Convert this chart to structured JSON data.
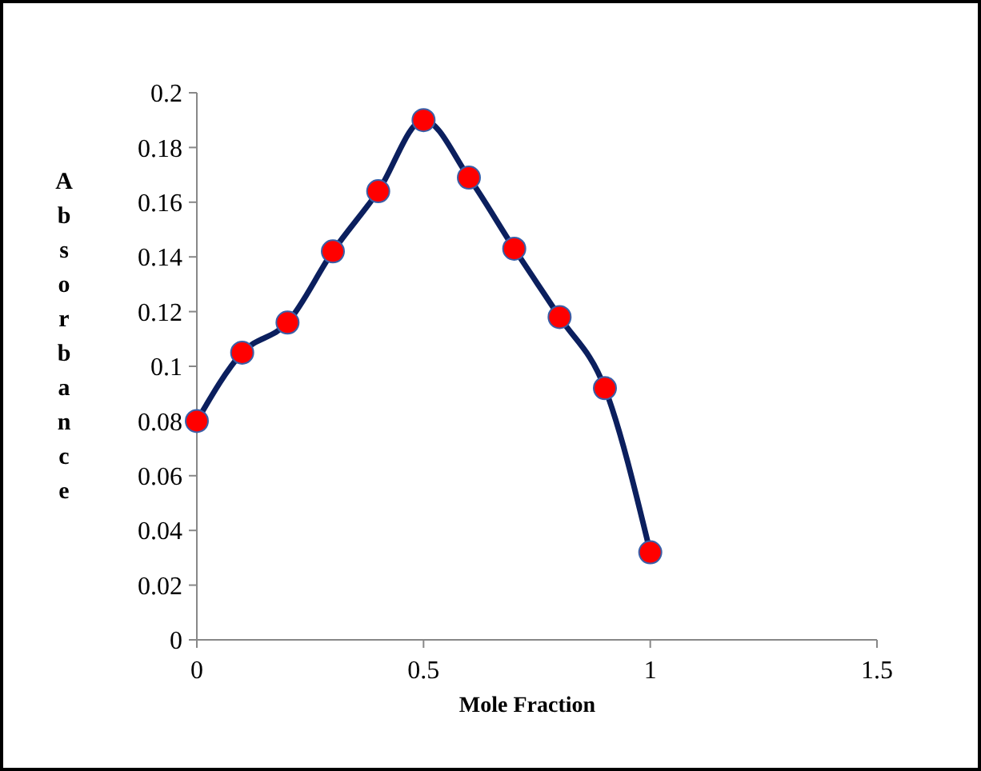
{
  "chart_data": {
    "type": "line",
    "xlabel": "Mole Fraction",
    "ylabel": "Absorbance",
    "x": [
      0,
      0.1,
      0.2,
      0.3,
      0.4,
      0.5,
      0.6,
      0.7,
      0.8,
      0.9,
      1
    ],
    "series": [
      {
        "color": "#0b1f5e",
        "values": [
          0.08,
          0.105,
          0.116,
          0.142,
          0.164,
          0.19,
          0.169,
          0.143,
          0.118,
          0.092,
          0.032
        ]
      }
    ],
    "xlim": [
      0,
      1.5
    ],
    "xticks": [
      0,
      0.5,
      1,
      1.5
    ],
    "ylim": [
      0,
      0.2
    ],
    "yticks": [
      0,
      0.02,
      0.04,
      0.06,
      0.08,
      0.1,
      0.12,
      0.14,
      0.16,
      0.18,
      0.2
    ],
    "marker": "circle",
    "line_style": "solid"
  }
}
